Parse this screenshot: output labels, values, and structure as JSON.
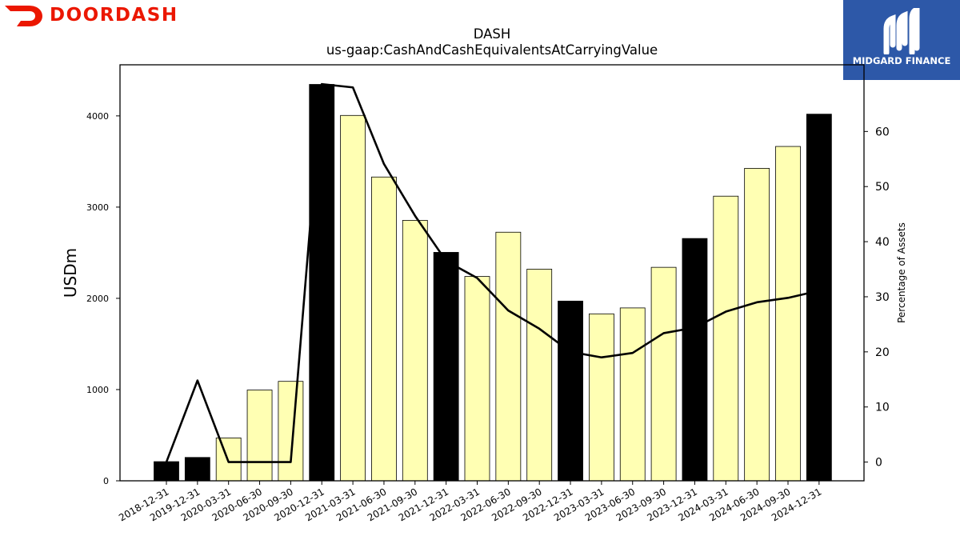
{
  "brand": {
    "name": "DOORDASH",
    "color": "#eb1700",
    "icon": "doordash-dash-icon"
  },
  "watermark": {
    "name": "MIDGARD FINANCE",
    "background": "#2d58a8",
    "icon": "midgard-m-icon"
  },
  "chart_data": {
    "type": "bar",
    "title": "DASH",
    "subtitle": "us-gaap:CashAndCashEquivalentsAtCarryingValue",
    "ylabel": "USDm",
    "y2label": "Percentage of Assets",
    "categories": [
      "2018-12-31",
      "2019-12-31",
      "2020-03-31",
      "2020-06-30",
      "2020-09-30",
      "2020-12-31",
      "2021-03-31",
      "2021-06-30",
      "2021-09-30",
      "2021-12-31",
      "2022-03-31",
      "2022-06-30",
      "2022-09-30",
      "2022-12-31",
      "2023-03-31",
      "2023-06-30",
      "2023-09-30",
      "2023-12-31",
      "2024-03-31",
      "2024-06-30",
      "2024-09-30",
      "2024-12-31"
    ],
    "series": [
      {
        "kind": "bar",
        "values": [
          210,
          256,
          470,
          995,
          1090,
          4345,
          4005,
          3330,
          2855,
          2504,
          2240,
          2725,
          2320,
          1970,
          1830,
          1895,
          2340,
          2656,
          3120,
          3425,
          3665,
          4019
        ]
      },
      {
        "kind": "line",
        "axis": "right",
        "values": [
          0,
          14.8,
          0,
          0,
          0,
          68.6,
          68.0,
          54.1,
          44.7,
          36.5,
          33.4,
          27.5,
          24.2,
          20.0,
          19.0,
          19.8,
          23.4,
          24.4,
          27.3,
          29.0,
          29.8,
          31.1
        ]
      }
    ],
    "bar_fill": {
      "annual": "#000000",
      "quarterly": "#ffffb3"
    },
    "annual_flags": [
      true,
      true,
      false,
      false,
      false,
      true,
      false,
      false,
      false,
      true,
      false,
      false,
      false,
      true,
      false,
      false,
      false,
      true,
      false,
      false,
      false,
      true
    ],
    "yticks": [
      0,
      1000,
      2000,
      3000,
      4000
    ],
    "ylim": [
      0,
      4560
    ],
    "y2ticks": [
      0,
      10,
      20,
      30,
      40,
      50,
      60
    ],
    "y2lim": [
      -3.4,
      72.1
    ],
    "grid": false
  }
}
